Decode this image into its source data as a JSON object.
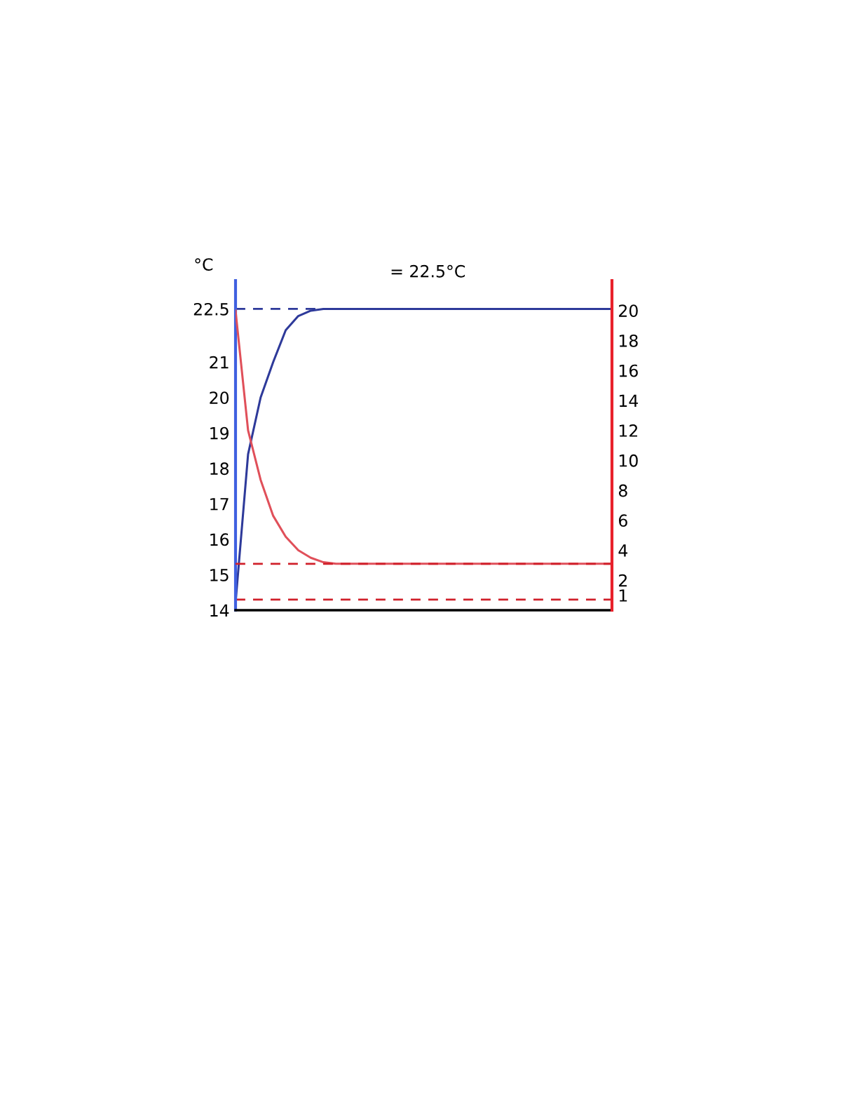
{
  "chart_data": {
    "type": "line",
    "ylabel": "°C",
    "annotations": [
      "= 22.5°C"
    ],
    "categories": [
      null,
      null,
      null,
      null,
      null,
      null,
      null,
      null,
      null,
      null,
      null,
      null,
      null,
      null,
      null,
      null,
      null,
      null,
      null,
      null,
      null,
      null,
      null,
      null,
      null,
      null,
      null,
      null,
      null,
      null,
      null
    ],
    "series": [
      {
        "color": "#2e3a9a",
        "values": [
          14.2,
          18.4,
          20.0,
          21.0,
          21.9,
          22.3,
          22.45,
          22.5,
          22.5,
          22.5,
          22.5,
          22.5,
          22.5,
          22.5,
          22.5,
          22.5,
          22.5,
          22.5,
          22.5,
          22.5,
          22.5,
          22.5,
          22.5,
          22.5,
          22.5,
          22.5,
          22.5,
          22.5,
          22.5,
          22.5,
          22.5
        ]
      },
      {
        "color": "#e0505a",
        "axis": "y2",
        "values": [
          20,
          12,
          8.7,
          6.3,
          4.9,
          4.0,
          3.5,
          3.2,
          3.1,
          3.1,
          3.1,
          3.1,
          3.1,
          3.1,
          3.1,
          3.1,
          3.1,
          3.1,
          3.1,
          3.1,
          3.1,
          3.1,
          3.1,
          3.1,
          3.1,
          3.1,
          3.1,
          3.1,
          3.1,
          3.1,
          3.1
        ]
      }
    ],
    "ylim": [
      14,
      23.3
    ],
    "yticks": [
      14,
      15,
      16,
      17,
      18,
      19,
      20,
      21,
      22.5
    ],
    "y2lim": [
      0,
      22
    ],
    "y2ticks": [
      1,
      2,
      4,
      6,
      8,
      10,
      12,
      14,
      16,
      18,
      20
    ],
    "ref_lines": [
      {
        "axis": "y",
        "value": 22.5,
        "color": "#2e3a9a",
        "line_style": "dashed"
      },
      {
        "axis": "y2",
        "value": 3.1,
        "color": "#d0202a",
        "line_style": "dashed"
      },
      {
        "axis": "y",
        "value": 14.3,
        "color": "#d0202a",
        "line_style": "dashed"
      }
    ],
    "grid": false,
    "legend": false
  }
}
